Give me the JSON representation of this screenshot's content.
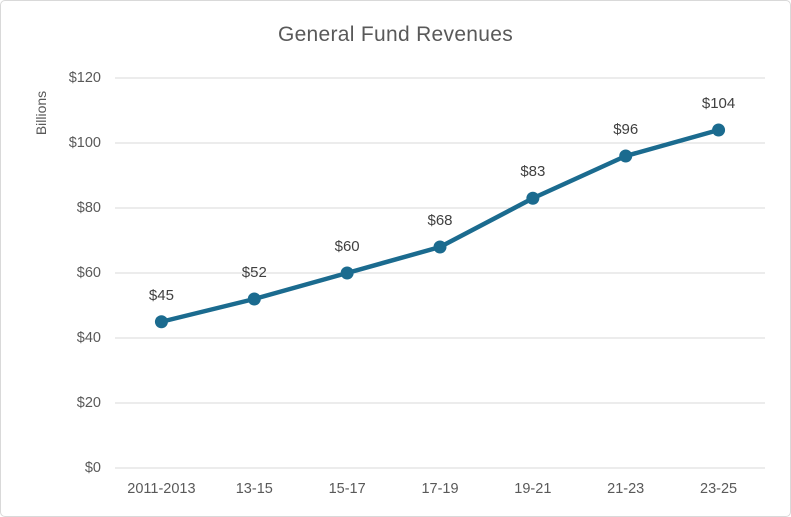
{
  "chart_data": {
    "type": "line",
    "title": "General Fund Revenues",
    "ylabel": "Billions",
    "xlabel": "",
    "categories": [
      "2011-2013",
      "13-15",
      "15-17",
      "17-19",
      "19-21",
      "21-23",
      "23-25"
    ],
    "series": [
      {
        "name": "General Fund Revenues",
        "values": [
          45,
          52,
          60,
          68,
          83,
          96,
          104
        ],
        "data_labels": [
          "$45",
          "$52",
          "$60",
          "$68",
          "$83",
          "$96",
          "$104"
        ]
      }
    ],
    "ylim": [
      0,
      120
    ],
    "y_tick_step": 20,
    "y_tick_labels": [
      "$0",
      "$20",
      "$40",
      "$60",
      "$80",
      "$100",
      "$120"
    ],
    "grid": true,
    "legend_position": "none",
    "colors": {
      "series_line": "#1b6b8f",
      "marker_fill": "#1b6b8f",
      "gridline": "#d9d9d9",
      "tick_text": "#595959",
      "title_text": "#595959",
      "data_label_text": "#404040",
      "frame_border": "#d9d9d9",
      "background": "#ffffff"
    }
  }
}
